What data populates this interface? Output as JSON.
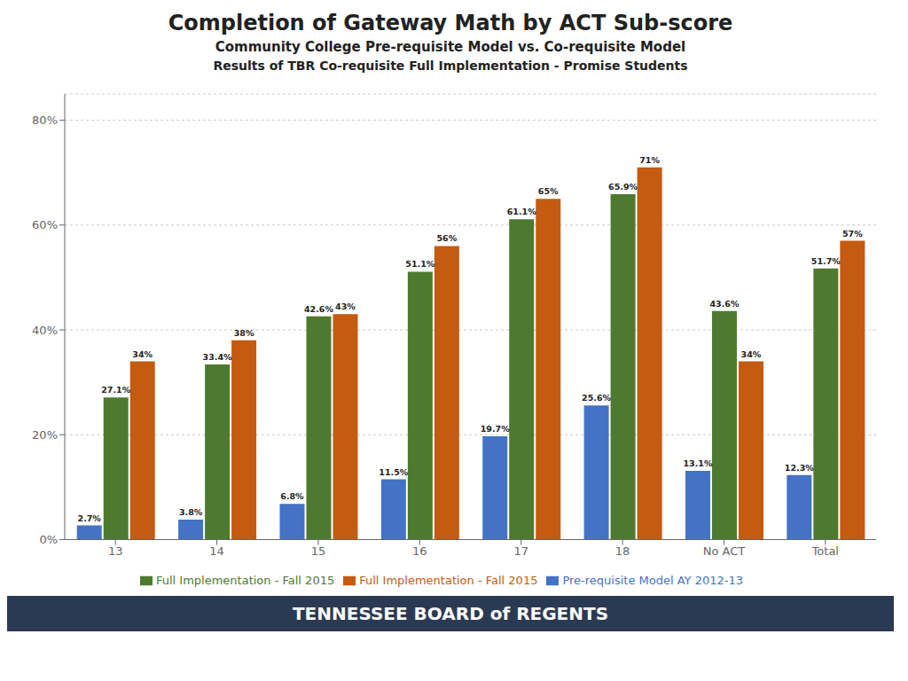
{
  "chart_data": {
    "type": "bar",
    "title": "Completion of Gateway Math by ACT Sub-score",
    "subtitle": [
      "Community College Pre-requisite Model vs. Co-requisite Model",
      "Results of TBR Co-requisite Full Implementation - Promise Students"
    ],
    "annotations": [
      "TENNESSEE BOARD of REGENTS"
    ],
    "categories": [
      "13",
      "14",
      "15",
      "16",
      "17",
      "18",
      "No ACT",
      "Total"
    ],
    "series": [
      {
        "name": "Pre-requisite Model AY 2012-13",
        "color": "#4472C4",
        "values": [
          2.7,
          3.8,
          6.8,
          11.5,
          19.7,
          25.6,
          13.1,
          12.3
        ],
        "value_labels": [
          "2.7%",
          "3.8%",
          "6.8%",
          "11.5%",
          "19.7%",
          "25.6%",
          "13.1%",
          "12.3%"
        ]
      },
      {
        "name": "Full Implementation - Fall 2015",
        "color": "#4E7A2F",
        "values": [
          27.1,
          33.4,
          42.6,
          51.1,
          61.1,
          65.9,
          43.6,
          51.7
        ],
        "value_labels": [
          "27.1%",
          "33.4%",
          "42.6%",
          "51.1%",
          "61.1%",
          "65.9%",
          "43.6%",
          "51.7%"
        ]
      },
      {
        "name": "Full Implementation - Fall 2015",
        "color": "#C55A11",
        "values": [
          34.0,
          38.0,
          43.0,
          56.0,
          65.0,
          71.0,
          34.0,
          57.0
        ],
        "value_labels": [
          "34%",
          "38%",
          "43%",
          "56%",
          "65%",
          "71%",
          "34%",
          "57%"
        ]
      }
    ],
    "ylim": [
      0,
      85
    ],
    "yticks": [
      {
        "value": 0,
        "label": "0%"
      },
      {
        "value": 20,
        "label": "20%"
      },
      {
        "value": 40,
        "label": "40%"
      },
      {
        "value": 60,
        "label": "60%"
      },
      {
        "value": 80,
        "label": "80%"
      }
    ],
    "grid": true,
    "legend": "bottom",
    "data_labels": true
  }
}
